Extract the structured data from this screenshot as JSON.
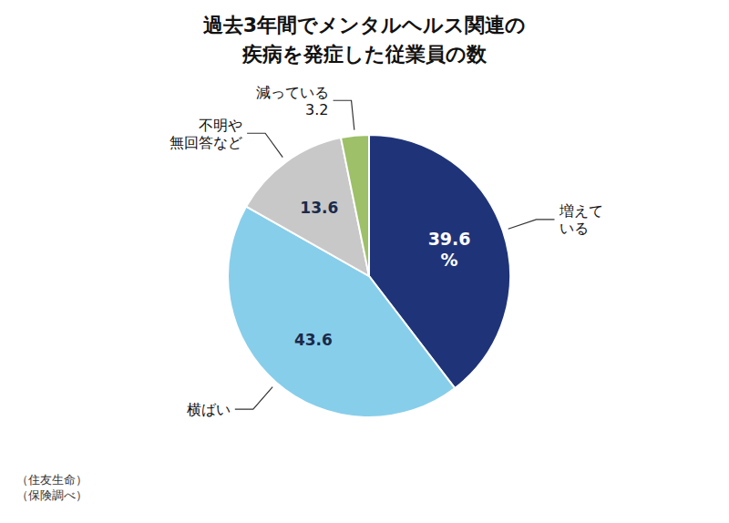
{
  "chart_data": {
    "type": "pie",
    "title": "過去3年間でメンタルヘルス関連の\n疾病を発症した従業員の数",
    "categories": [
      "増えて\nいる",
      "横ばい",
      "不明や\n無回答など",
      "減っている\n3.2"
    ],
    "values": [
      39.6,
      43.6,
      13.6,
      3.2
    ],
    "value_labels": [
      "39.6\n%",
      "43.6",
      "13.6",
      null
    ],
    "colors": [
      "#1f3478",
      "#87ceeb",
      "#c8c8c8",
      "#9dc068"
    ],
    "data_labels": true,
    "annotations": [
      "（住友生命）\n（保険調べ）"
    ]
  }
}
